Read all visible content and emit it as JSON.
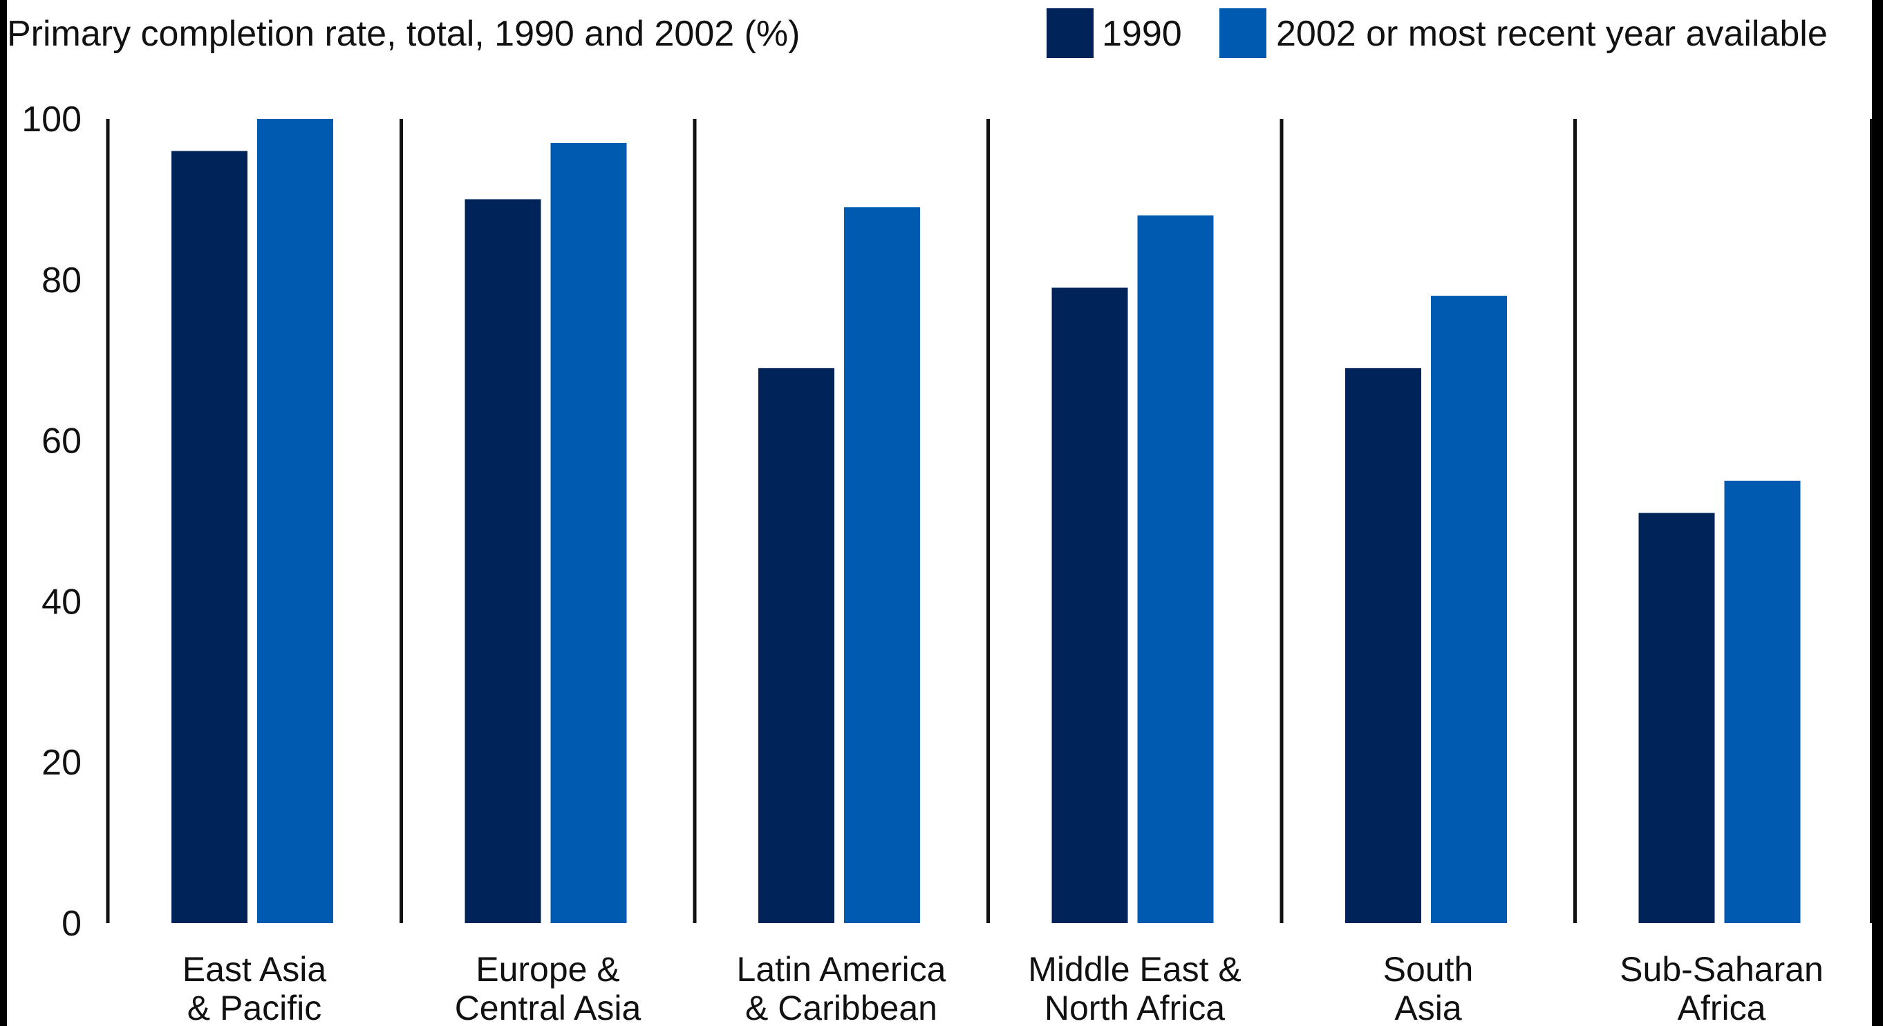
{
  "chart_data": {
    "type": "bar",
    "title": "Primary completion rate, total, 1990 and 2002 (%)",
    "categories": [
      [
        "East Asia",
        "& Pacific"
      ],
      [
        "Europe &",
        "Central Asia"
      ],
      [
        "Latin America",
        "& Caribbean"
      ],
      [
        "Middle East &",
        "North Africa"
      ],
      [
        "South",
        "Asia"
      ],
      [
        "Sub-Saharan",
        "Africa"
      ]
    ],
    "series": [
      {
        "name": "1990",
        "color": "#00235a",
        "values": [
          96,
          90,
          69,
          79,
          69,
          51
        ]
      },
      {
        "name": "2002 or most recent year available",
        "color": "#005bb0",
        "values": [
          100,
          97,
          89,
          88,
          78,
          55
        ]
      }
    ],
    "ylim": [
      0,
      100
    ],
    "yticks": [
      0,
      20,
      40,
      60,
      80,
      100
    ],
    "grid": false,
    "legend_position": "top-right"
  }
}
